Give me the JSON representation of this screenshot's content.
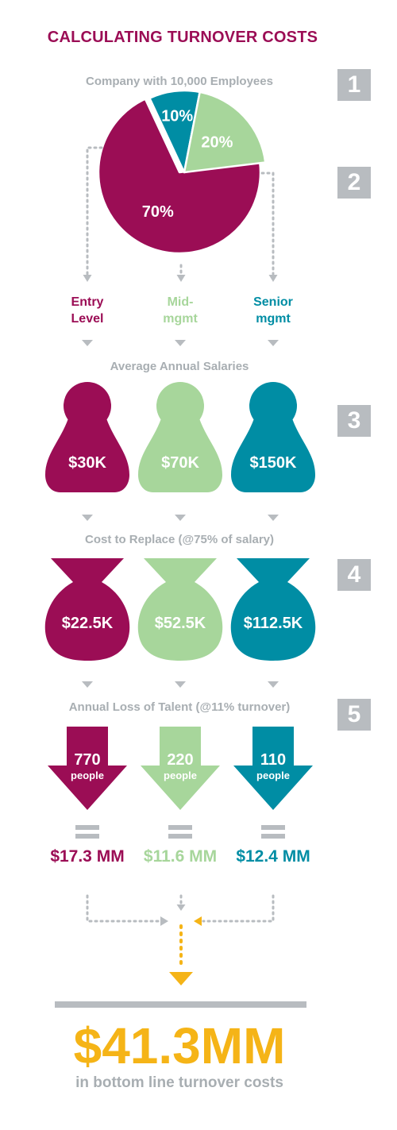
{
  "colors": {
    "entry": "#9b0d55",
    "mid": "#a7d69b",
    "senior": "#008da4",
    "gray": "#b8bcc0",
    "gray_text": "#a8aeb2",
    "gold": "#f5b417"
  },
  "header": {
    "title": "CALCULATING TURNOVER COSTS",
    "company": "Company with 10,000 Employees"
  },
  "steps": [
    "1",
    "2",
    "3",
    "4",
    "5"
  ],
  "levels": [
    {
      "label": "Entry\nLevel",
      "color": "entry"
    },
    {
      "label": "Mid-\nmgmt",
      "color": "mid"
    },
    {
      "label": "Senior\nmgmt",
      "color": "senior"
    }
  ],
  "sections": {
    "salaries_title": "Average Annual Salaries",
    "replace_title": "Cost to Replace (@75% of salary)",
    "loss_title": "Annual Loss of Talent (@11% turnover)"
  },
  "people_word": "people",
  "chart_data": {
    "type": "pie",
    "slices": [
      {
        "label": "70%",
        "value": 70,
        "color": "entry"
      },
      {
        "label": "10%",
        "value": 10,
        "color": "senior"
      },
      {
        "label": "20%",
        "value": 20,
        "color": "mid"
      }
    ],
    "salaries": [
      "$30K",
      "$70K",
      "$150K"
    ],
    "replace_costs": [
      "$22.5K",
      "$52.5K",
      "$112.5K"
    ],
    "people_lost": [
      "770",
      "220",
      "110"
    ],
    "level_costs": [
      "$17.3 MM",
      "$11.6 MM",
      "$12.4 MM"
    ]
  },
  "result": {
    "total": "$41.3MM",
    "caption": "in bottom line turnover costs"
  }
}
